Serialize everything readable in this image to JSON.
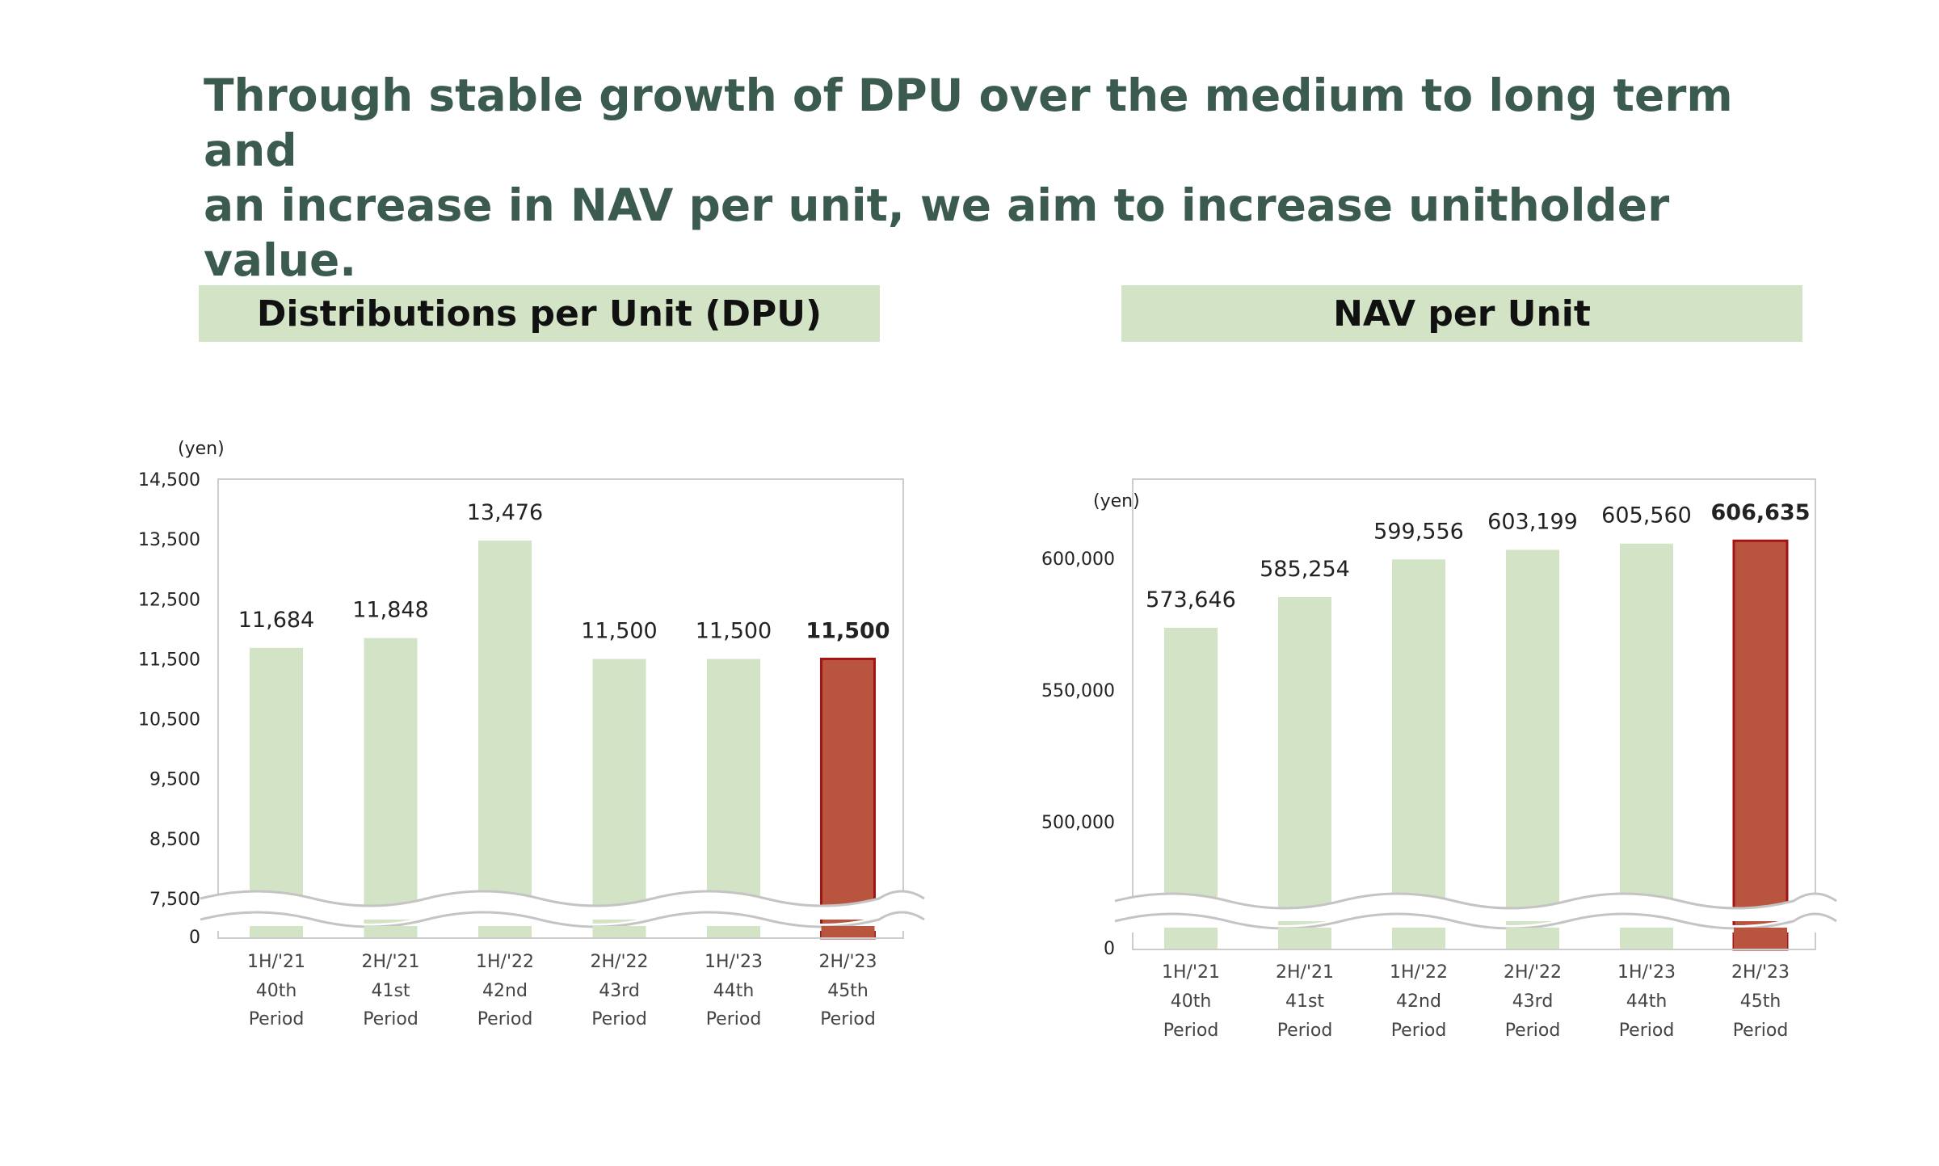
{
  "headline": {
    "line1": "Through stable growth of DPU over the medium to long term and",
    "line2": "an increase in NAV per unit, we aim to increase unitholder value."
  },
  "colors": {
    "headline": "#3b5b4f",
    "panel_title_bg": "#d2e4c5",
    "bar_normal": "#d2e4c5",
    "bar_highlight": "#b9553e",
    "bar_highlight_border": "#a31515"
  },
  "chart_data": [
    {
      "id": "dpu",
      "type": "bar",
      "title": "Distributions per Unit (DPU)",
      "unit_label": "(yen)",
      "categories": [
        [
          "1H/'21",
          "40th",
          "Period"
        ],
        [
          "2H/'21",
          "41st",
          "Period"
        ],
        [
          "1H/'22",
          "42nd",
          "Period"
        ],
        [
          "2H/'22",
          "43rd",
          "Period"
        ],
        [
          "1H/'23",
          "44th",
          "Period"
        ],
        [
          "2H/'23",
          "45th",
          "Period"
        ]
      ],
      "values": [
        11684,
        11848,
        13476,
        11500,
        11500,
        11500
      ],
      "value_labels": [
        "11,684",
        "11,848",
        "13,476",
        "11,500",
        "11,500",
        "11,500"
      ],
      "highlight_index": 5,
      "ylim": [
        7500,
        14500
      ],
      "yticks": [
        7500,
        8500,
        9500,
        10500,
        11500,
        12500,
        13500,
        14500
      ],
      "ytick_labels": [
        "7,500",
        "8,500",
        "9,500",
        "10,500",
        "11,500",
        "12,500",
        "13,500",
        "14,500"
      ],
      "axis_break": true,
      "zero_label": "0",
      "grid": false,
      "legend": "none"
    },
    {
      "id": "nav",
      "type": "bar",
      "title": "NAV per Unit",
      "unit_label": "(yen)",
      "categories": [
        [
          "1H/'21",
          "40th",
          "Period"
        ],
        [
          "2H/'21",
          "41st",
          "Period"
        ],
        [
          "1H/'22",
          "42nd",
          "Period"
        ],
        [
          "2H/'22",
          "43rd",
          "Period"
        ],
        [
          "1H/'23",
          "44th",
          "Period"
        ],
        [
          "2H/'23",
          "45th",
          "Period"
        ]
      ],
      "values": [
        573646,
        585254,
        599556,
        603199,
        605560,
        606635
      ],
      "value_labels": [
        "573,646",
        "585,254",
        "599,556",
        "603,199",
        "605,560",
        "606,635"
      ],
      "highlight_index": 5,
      "ylim": [
        470000,
        630000
      ],
      "yticks": [
        500000,
        550000,
        600000
      ],
      "ytick_labels": [
        "500,000",
        "550,000",
        "600,000"
      ],
      "axis_break": true,
      "zero_label": "0",
      "grid": false,
      "legend": "none"
    }
  ]
}
